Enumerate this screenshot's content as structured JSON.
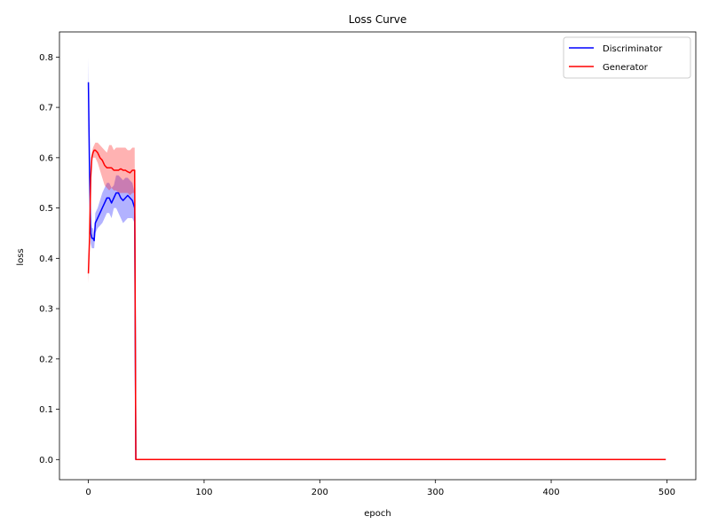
{
  "chart_data": {
    "type": "line",
    "title": "Loss Curve",
    "xlabel": "epoch",
    "ylabel": "loss",
    "xlim": [
      -25,
      525
    ],
    "ylim": [
      -0.04,
      0.85
    ],
    "xticks": [
      0,
      100,
      200,
      300,
      400,
      500
    ],
    "yticks": [
      0.0,
      0.1,
      0.2,
      0.3,
      0.4,
      0.5,
      0.6,
      0.7,
      0.8
    ],
    "xtick_labels": [
      "0",
      "100",
      "200",
      "300",
      "400",
      "500"
    ],
    "ytick_labels": [
      "0.0",
      "0.1",
      "0.2",
      "0.3",
      "0.4",
      "0.5",
      "0.6",
      "0.7",
      "0.8"
    ],
    "grid": false,
    "legend_position": "top-right",
    "series": [
      {
        "name": "Discriminator",
        "color": "#0000ff",
        "x": [
          0,
          1,
          2,
          3,
          4,
          5,
          6,
          8,
          10,
          12,
          14,
          16,
          18,
          20,
          22,
          24,
          26,
          28,
          30,
          32,
          34,
          36,
          38,
          40,
          41,
          42,
          45,
          60,
          100,
          200,
          300,
          400,
          499
        ],
        "y": [
          0.75,
          0.57,
          0.45,
          0.44,
          0.44,
          0.435,
          0.47,
          0.48,
          0.49,
          0.5,
          0.51,
          0.52,
          0.52,
          0.51,
          0.52,
          0.53,
          0.53,
          0.52,
          0.515,
          0.52,
          0.525,
          0.52,
          0.515,
          0.5,
          0.0,
          0.0,
          0.0,
          0.0,
          0.0,
          0.0,
          0.0,
          0.0,
          0.0
        ],
        "lower": [
          0.7,
          0.55,
          0.43,
          0.42,
          0.42,
          0.42,
          0.45,
          0.46,
          0.465,
          0.47,
          0.48,
          0.49,
          0.49,
          0.48,
          0.5,
          0.5,
          0.49,
          0.48,
          0.47,
          0.475,
          0.48,
          0.48,
          0.48,
          0.47,
          0.0,
          0.0,
          0.0,
          0.0,
          0.0,
          0.0,
          0.0,
          0.0,
          0.0
        ],
        "upper": [
          0.8,
          0.6,
          0.47,
          0.46,
          0.46,
          0.45,
          0.49,
          0.5,
          0.515,
          0.53,
          0.54,
          0.55,
          0.55,
          0.54,
          0.545,
          0.565,
          0.565,
          0.56,
          0.555,
          0.56,
          0.56,
          0.555,
          0.55,
          0.53,
          0.0,
          0.0,
          0.0,
          0.0,
          0.0,
          0.0,
          0.0,
          0.0,
          0.0
        ]
      },
      {
        "name": "Generator",
        "color": "#ff0000",
        "x": [
          0,
          1,
          2,
          3,
          4,
          5,
          6,
          8,
          10,
          12,
          14,
          16,
          18,
          20,
          22,
          24,
          26,
          28,
          30,
          32,
          34,
          36,
          38,
          40,
          41,
          42,
          45,
          60,
          100,
          200,
          300,
          400,
          499
        ],
        "y": [
          0.37,
          0.44,
          0.56,
          0.6,
          0.61,
          0.615,
          0.615,
          0.61,
          0.6,
          0.595,
          0.585,
          0.58,
          0.58,
          0.58,
          0.575,
          0.575,
          0.575,
          0.578,
          0.575,
          0.575,
          0.572,
          0.57,
          0.575,
          0.575,
          0.0,
          0.0,
          0.0,
          0.0,
          0.0,
          0.0,
          0.0,
          0.0,
          0.0
        ],
        "lower": [
          0.35,
          0.42,
          0.54,
          0.59,
          0.6,
          0.6,
          0.6,
          0.59,
          0.575,
          0.56,
          0.545,
          0.54,
          0.535,
          0.54,
          0.535,
          0.535,
          0.53,
          0.53,
          0.53,
          0.53,
          0.53,
          0.525,
          0.53,
          0.53,
          0.0,
          0.0,
          0.0,
          0.0,
          0.0,
          0.0,
          0.0,
          0.0,
          0.0
        ],
        "upper": [
          0.39,
          0.46,
          0.58,
          0.61,
          0.62,
          0.625,
          0.63,
          0.63,
          0.625,
          0.62,
          0.615,
          0.61,
          0.625,
          0.625,
          0.615,
          0.62,
          0.62,
          0.62,
          0.62,
          0.62,
          0.615,
          0.615,
          0.62,
          0.62,
          0.0,
          0.0,
          0.0,
          0.0,
          0.0,
          0.0,
          0.0,
          0.0,
          0.0
        ]
      }
    ]
  }
}
